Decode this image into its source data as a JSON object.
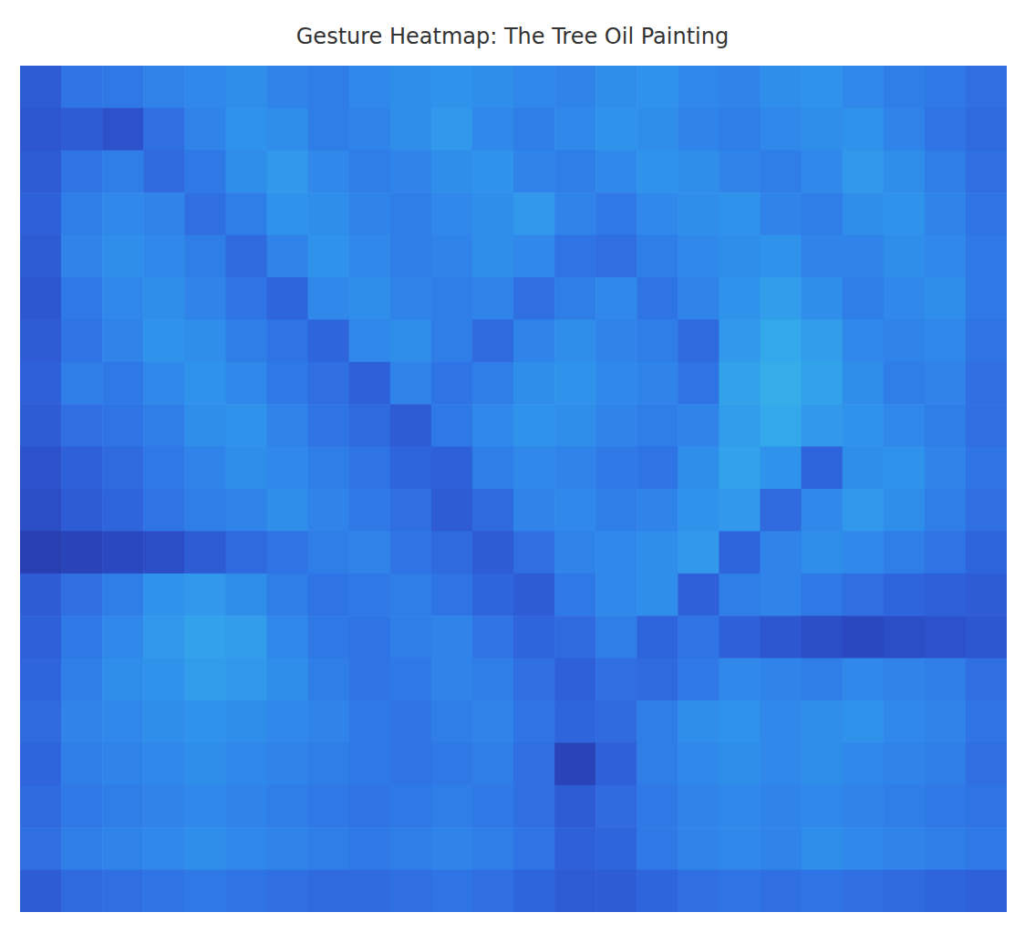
{
  "chart_data": {
    "type": "heatmap",
    "title": "Gesture Heatmap: The Tree Oil Painting",
    "tick_labels": false,
    "zlim": [
      0,
      1
    ],
    "cells": [
      [
        0.3,
        0.4,
        0.42,
        0.45,
        0.48,
        0.5,
        0.46,
        0.44,
        0.48,
        0.5,
        0.52,
        0.5,
        0.48,
        0.46,
        0.5,
        0.52,
        0.48,
        0.46,
        0.5,
        0.52,
        0.48,
        0.44,
        0.42,
        0.38
      ],
      [
        0.28,
        0.3,
        0.26,
        0.38,
        0.46,
        0.52,
        0.5,
        0.44,
        0.46,
        0.5,
        0.54,
        0.48,
        0.44,
        0.48,
        0.52,
        0.5,
        0.46,
        0.44,
        0.48,
        0.5,
        0.52,
        0.46,
        0.4,
        0.36
      ],
      [
        0.3,
        0.4,
        0.44,
        0.36,
        0.42,
        0.5,
        0.54,
        0.48,
        0.44,
        0.46,
        0.5,
        0.52,
        0.46,
        0.44,
        0.48,
        0.52,
        0.5,
        0.46,
        0.44,
        0.48,
        0.54,
        0.5,
        0.44,
        0.38
      ],
      [
        0.32,
        0.44,
        0.48,
        0.46,
        0.38,
        0.44,
        0.52,
        0.5,
        0.46,
        0.44,
        0.48,
        0.5,
        0.54,
        0.46,
        0.42,
        0.48,
        0.5,
        0.52,
        0.46,
        0.44,
        0.5,
        0.52,
        0.46,
        0.4
      ],
      [
        0.3,
        0.46,
        0.5,
        0.48,
        0.44,
        0.36,
        0.46,
        0.52,
        0.48,
        0.44,
        0.46,
        0.5,
        0.48,
        0.4,
        0.38,
        0.44,
        0.48,
        0.5,
        0.52,
        0.46,
        0.46,
        0.5,
        0.48,
        0.42
      ],
      [
        0.28,
        0.42,
        0.48,
        0.5,
        0.46,
        0.4,
        0.34,
        0.48,
        0.5,
        0.46,
        0.44,
        0.46,
        0.38,
        0.44,
        0.48,
        0.4,
        0.46,
        0.52,
        0.56,
        0.5,
        0.44,
        0.48,
        0.5,
        0.42
      ],
      [
        0.3,
        0.4,
        0.46,
        0.52,
        0.5,
        0.44,
        0.4,
        0.34,
        0.48,
        0.5,
        0.44,
        0.36,
        0.46,
        0.5,
        0.46,
        0.44,
        0.36,
        0.54,
        0.6,
        0.56,
        0.48,
        0.46,
        0.48,
        0.4
      ],
      [
        0.32,
        0.44,
        0.42,
        0.48,
        0.52,
        0.48,
        0.42,
        0.38,
        0.32,
        0.46,
        0.4,
        0.44,
        0.5,
        0.52,
        0.48,
        0.46,
        0.4,
        0.58,
        0.62,
        0.58,
        0.5,
        0.44,
        0.46,
        0.38
      ],
      [
        0.3,
        0.38,
        0.4,
        0.44,
        0.5,
        0.52,
        0.46,
        0.4,
        0.36,
        0.3,
        0.42,
        0.48,
        0.52,
        0.5,
        0.46,
        0.44,
        0.46,
        0.56,
        0.6,
        0.54,
        0.52,
        0.48,
        0.44,
        0.38
      ],
      [
        0.26,
        0.32,
        0.36,
        0.42,
        0.46,
        0.5,
        0.48,
        0.44,
        0.4,
        0.34,
        0.32,
        0.44,
        0.48,
        0.46,
        0.42,
        0.4,
        0.5,
        0.58,
        0.52,
        0.34,
        0.5,
        0.52,
        0.46,
        0.4
      ],
      [
        0.24,
        0.3,
        0.34,
        0.4,
        0.44,
        0.46,
        0.5,
        0.46,
        0.42,
        0.38,
        0.3,
        0.36,
        0.46,
        0.48,
        0.44,
        0.46,
        0.52,
        0.54,
        0.36,
        0.48,
        0.54,
        0.5,
        0.44,
        0.38
      ],
      [
        0.18,
        0.2,
        0.22,
        0.24,
        0.3,
        0.36,
        0.4,
        0.44,
        0.46,
        0.4,
        0.36,
        0.3,
        0.38,
        0.46,
        0.48,
        0.5,
        0.54,
        0.34,
        0.46,
        0.5,
        0.48,
        0.44,
        0.4,
        0.34
      ],
      [
        0.3,
        0.38,
        0.44,
        0.52,
        0.54,
        0.5,
        0.44,
        0.4,
        0.42,
        0.44,
        0.4,
        0.34,
        0.3,
        0.42,
        0.48,
        0.5,
        0.32,
        0.44,
        0.46,
        0.42,
        0.38,
        0.34,
        0.32,
        0.3
      ],
      [
        0.32,
        0.42,
        0.48,
        0.54,
        0.58,
        0.56,
        0.48,
        0.42,
        0.4,
        0.44,
        0.46,
        0.4,
        0.34,
        0.36,
        0.44,
        0.34,
        0.4,
        0.32,
        0.28,
        0.24,
        0.22,
        0.24,
        0.26,
        0.28
      ],
      [
        0.34,
        0.44,
        0.5,
        0.52,
        0.56,
        0.54,
        0.5,
        0.44,
        0.4,
        0.42,
        0.46,
        0.44,
        0.38,
        0.32,
        0.38,
        0.36,
        0.42,
        0.48,
        0.46,
        0.44,
        0.48,
        0.46,
        0.44,
        0.38
      ],
      [
        0.36,
        0.46,
        0.48,
        0.5,
        0.52,
        0.5,
        0.48,
        0.46,
        0.42,
        0.4,
        0.44,
        0.46,
        0.4,
        0.34,
        0.36,
        0.44,
        0.5,
        0.52,
        0.48,
        0.5,
        0.52,
        0.48,
        0.46,
        0.4
      ],
      [
        0.34,
        0.44,
        0.46,
        0.48,
        0.5,
        0.48,
        0.46,
        0.44,
        0.42,
        0.4,
        0.42,
        0.44,
        0.38,
        0.2,
        0.32,
        0.44,
        0.48,
        0.5,
        0.48,
        0.5,
        0.48,
        0.46,
        0.44,
        0.38
      ],
      [
        0.36,
        0.42,
        0.44,
        0.46,
        0.48,
        0.46,
        0.44,
        0.42,
        0.4,
        0.42,
        0.44,
        0.42,
        0.38,
        0.3,
        0.36,
        0.42,
        0.46,
        0.48,
        0.46,
        0.48,
        0.46,
        0.44,
        0.42,
        0.4
      ],
      [
        0.38,
        0.44,
        0.46,
        0.48,
        0.5,
        0.48,
        0.46,
        0.44,
        0.42,
        0.44,
        0.46,
        0.44,
        0.4,
        0.32,
        0.34,
        0.42,
        0.46,
        0.48,
        0.46,
        0.5,
        0.48,
        0.46,
        0.44,
        0.42
      ],
      [
        0.3,
        0.36,
        0.38,
        0.4,
        0.42,
        0.4,
        0.38,
        0.36,
        0.36,
        0.38,
        0.4,
        0.38,
        0.34,
        0.3,
        0.3,
        0.34,
        0.38,
        0.4,
        0.38,
        0.4,
        0.38,
        0.36,
        0.34,
        0.32
      ]
    ]
  }
}
